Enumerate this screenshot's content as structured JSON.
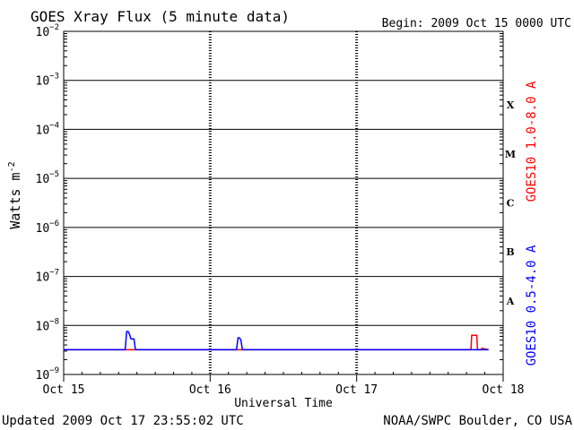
{
  "title": "GOES Xray Flux (5 minute data)",
  "begin_label": "Begin:  2009 Oct 15 0000 UTC",
  "updated": "Updated 2009 Oct 17 23:55:02 UTC",
  "credit": "NOAA/SWPC Boulder, CO USA",
  "colors": {
    "long": "#ff0000",
    "short": "#0000ff",
    "axis": "#000000"
  },
  "chart_data": {
    "type": "line",
    "title": "GOES Xray Flux (5 minute data)",
    "xlabel": "Universal Time",
    "ylabel": "Watts m",
    "ylabel_sup": "-2",
    "x_ticks": [
      "Oct 15",
      "Oct 16",
      "Oct 17",
      "Oct 18"
    ],
    "xlim": [
      0,
      3
    ],
    "y_scale": "log",
    "ylim": [
      1e-09,
      0.01
    ],
    "y_tick_exponents": [
      -2,
      -3,
      -4,
      -5,
      -6,
      -7,
      -8,
      -9
    ],
    "y_tick_base": "10",
    "flare_classes": [
      "X",
      "M",
      "C",
      "B",
      "A"
    ],
    "grid": true,
    "series": [
      {
        "name": "GOES10 1.0-8.0 A",
        "color": "#ff0000",
        "x": [
          0.0,
          2.78,
          2.785,
          2.82,
          2.825,
          2.85,
          2.855,
          2.9
        ],
        "y": [
          3.2e-09,
          3.2e-09,
          6.3e-09,
          6.3e-09,
          3.2e-09,
          3.2e-09,
          3.4e-09,
          3.2e-09
        ]
      },
      {
        "name": "GOES10 0.5-4.0 A",
        "color": "#0000ff",
        "x": [
          0.0,
          0.42,
          0.43,
          0.44,
          0.45,
          0.46,
          0.47,
          0.48,
          0.49,
          0.5,
          1.18,
          1.19,
          1.2,
          1.21,
          1.22,
          1.23,
          2.9
        ],
        "y": [
          3.2e-09,
          3.2e-09,
          7.5e-09,
          7.5e-09,
          6.5e-09,
          5.3e-09,
          5.3e-09,
          5.3e-09,
          3.2e-09,
          3.2e-09,
          3.2e-09,
          5.6e-09,
          5.6e-09,
          5e-09,
          3.2e-09,
          3.2e-09,
          3.2e-09
        ]
      }
    ]
  }
}
